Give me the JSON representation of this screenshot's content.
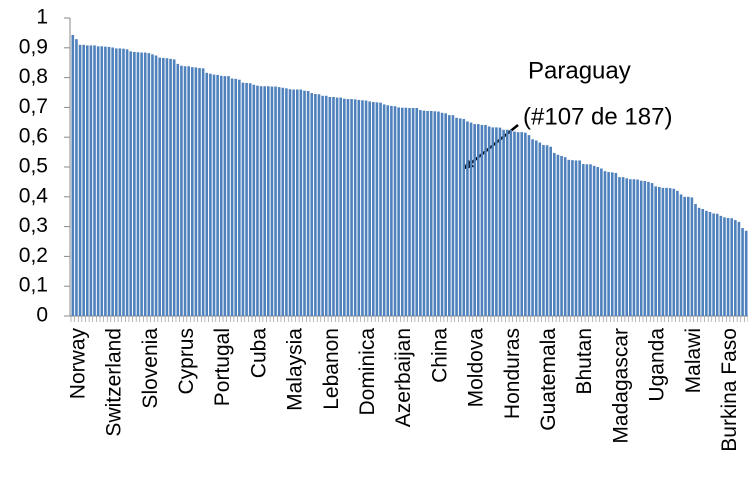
{
  "chart_data": {
    "type": "bar",
    "categories": [
      "Norway",
      null,
      null,
      null,
      null,
      null,
      null,
      null,
      null,
      null,
      "Switzerland",
      null,
      null,
      null,
      null,
      null,
      null,
      null,
      null,
      null,
      "Slovenia",
      null,
      null,
      null,
      null,
      null,
      null,
      null,
      null,
      null,
      "Cyprus",
      null,
      null,
      null,
      null,
      null,
      null,
      null,
      null,
      null,
      "Portugal",
      null,
      null,
      null,
      null,
      null,
      null,
      null,
      null,
      null,
      "Cuba",
      null,
      null,
      null,
      null,
      null,
      null,
      null,
      null,
      null,
      "Malaysia",
      null,
      null,
      null,
      null,
      null,
      null,
      null,
      null,
      null,
      "Lebanon",
      null,
      null,
      null,
      null,
      null,
      null,
      null,
      null,
      null,
      "Dominica",
      null,
      null,
      null,
      null,
      null,
      null,
      null,
      null,
      null,
      "Azerbaijan",
      null,
      null,
      null,
      null,
      null,
      null,
      null,
      null,
      null,
      "China",
      null,
      null,
      null,
      null,
      null,
      null,
      null,
      null,
      null,
      "Moldova",
      null,
      null,
      null,
      null,
      null,
      null,
      null,
      null,
      null,
      "Honduras",
      null,
      null,
      null,
      null,
      null,
      null,
      null,
      null,
      null,
      "Guatemala",
      null,
      null,
      null,
      null,
      null,
      null,
      null,
      null,
      null,
      "Bhutan",
      null,
      null,
      null,
      null,
      null,
      null,
      null,
      null,
      null,
      "Madagascar",
      null,
      null,
      null,
      null,
      null,
      null,
      null,
      null,
      null,
      "Uganda",
      null,
      null,
      null,
      null,
      null,
      null,
      null,
      null,
      null,
      "Malawi",
      null,
      null,
      null,
      null,
      null,
      null,
      null,
      null,
      null,
      "Burkina Faso",
      null,
      null,
      null,
      null,
      null,
      null
    ],
    "values": [
      0.943,
      0.929,
      0.91,
      0.91,
      0.908,
      0.908,
      0.908,
      0.905,
      0.905,
      0.904,
      0.903,
      0.901,
      0.898,
      0.898,
      0.897,
      0.895,
      0.888,
      0.886,
      0.885,
      0.884,
      0.884,
      0.882,
      0.878,
      0.874,
      0.867,
      0.866,
      0.865,
      0.863,
      0.861,
      0.846,
      0.84,
      0.838,
      0.838,
      0.835,
      0.834,
      0.832,
      0.831,
      0.816,
      0.813,
      0.81,
      0.809,
      0.806,
      0.805,
      0.805,
      0.797,
      0.796,
      0.793,
      0.783,
      0.782,
      0.781,
      0.776,
      0.773,
      0.771,
      0.771,
      0.771,
      0.77,
      0.77,
      0.768,
      0.766,
      0.764,
      0.761,
      0.76,
      0.76,
      0.76,
      0.756,
      0.755,
      0.748,
      0.745,
      0.744,
      0.739,
      0.739,
      0.735,
      0.735,
      0.733,
      0.733,
      0.729,
      0.728,
      0.728,
      0.727,
      0.725,
      0.724,
      0.723,
      0.72,
      0.718,
      0.717,
      0.716,
      0.71,
      0.707,
      0.705,
      0.704,
      0.7,
      0.699,
      0.699,
      0.698,
      0.698,
      0.698,
      0.691,
      0.689,
      0.688,
      0.688,
      0.687,
      0.686,
      0.682,
      0.68,
      0.674,
      0.674,
      0.665,
      0.663,
      0.661,
      0.653,
      0.649,
      0.644,
      0.644,
      0.641,
      0.641,
      0.636,
      0.633,
      0.633,
      0.632,
      0.625,
      0.625,
      0.624,
      0.619,
      0.617,
      0.617,
      0.615,
      0.607,
      0.593,
      0.589,
      0.582,
      0.574,
      0.573,
      0.568,
      0.547,
      0.541,
      0.537,
      0.533,
      0.524,
      0.523,
      0.522,
      0.522,
      0.51,
      0.509,
      0.509,
      0.504,
      0.5,
      0.495,
      0.486,
      0.483,
      0.482,
      0.48,
      0.466,
      0.466,
      0.462,
      0.459,
      0.459,
      0.458,
      0.454,
      0.453,
      0.45,
      0.446,
      0.435,
      0.433,
      0.43,
      0.43,
      0.429,
      0.427,
      0.42,
      0.408,
      0.4,
      0.4,
      0.398,
      0.376,
      0.363,
      0.359,
      0.353,
      0.349,
      0.344,
      0.343,
      0.336,
      0.331,
      0.329,
      0.328,
      0.322,
      0.316,
      0.295,
      0.286
    ],
    "color": "#4f81bd",
    "ylim": [
      0,
      1
    ],
    "yticks": [
      0,
      {
        "value": 0.1,
        "label": "0,1"
      },
      {
        "value": 0.2,
        "label": "0,2"
      },
      {
        "value": 0.3,
        "label": "0,3"
      },
      {
        "value": 0.4,
        "label": "0,4"
      },
      {
        "value": 0.5,
        "label": "0,5"
      },
      {
        "value": 0.6,
        "label": "0,6"
      },
      {
        "value": 0.7,
        "label": "0,7"
      },
      {
        "value": 0.8,
        "label": "0,8"
      },
      {
        "value": 0.9,
        "label": "0,9"
      },
      1
    ],
    "grid": false,
    "annotations": [
      "Paraguay",
      "(#107 de 187)"
    ]
  }
}
